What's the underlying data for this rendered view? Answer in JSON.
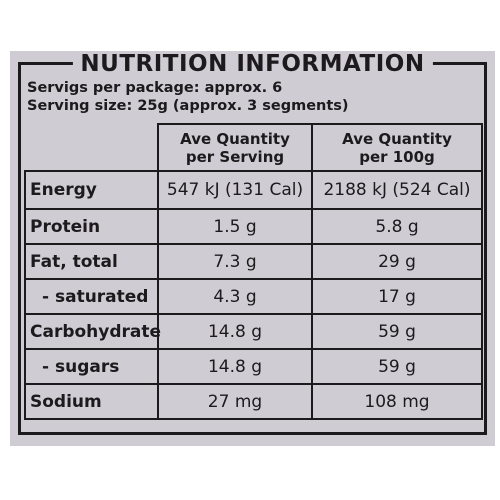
{
  "title": "NUTRITION INFORMATION",
  "servings_per_package": "Servigs per package: approx. 6",
  "serving_size": "Serving size: 25g (approx. 3 segments)",
  "columns": {
    "per_serving": [
      "Ave Quantity",
      "per Serving"
    ],
    "per_100g": [
      "Ave Quantity",
      "per 100g"
    ]
  },
  "rows": [
    {
      "name": "Energy",
      "per_serving": "547 kJ (131 Cal)",
      "per_100g": "2188 kJ (524 Cal)"
    },
    {
      "name": "Protein",
      "per_serving": "1.5 g",
      "per_100g": "5.8 g"
    },
    {
      "name": "Fat, total",
      "per_serving": "7.3 g",
      "per_100g": "29 g"
    },
    {
      "name": "- saturated",
      "per_serving": "4.3 g",
      "per_100g": "17 g"
    },
    {
      "name": "Carbohydrate",
      "per_serving": "14.8 g",
      "per_100g": "59 g"
    },
    {
      "name": "- sugars",
      "per_serving": "14.8 g",
      "per_100g": "59 g"
    },
    {
      "name": "Sodium",
      "per_serving": "27 mg",
      "per_100g": "108 mg"
    }
  ],
  "colors": {
    "panel": "#d0ccd4",
    "ink": "#1c1a1d",
    "background": "#ffffff"
  }
}
